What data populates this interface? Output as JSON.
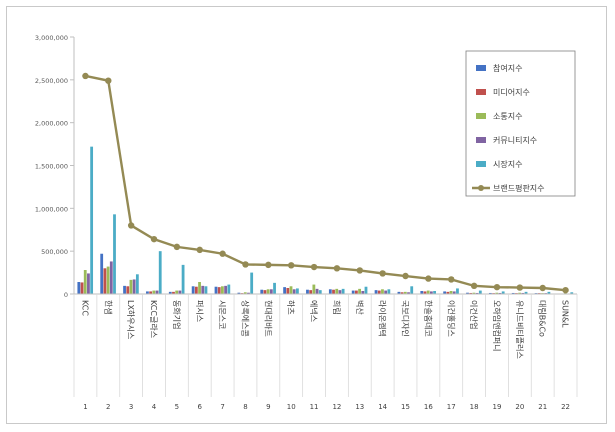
{
  "chart_data": {
    "type": "bar",
    "ylim": [
      0,
      3000000
    ],
    "yticks": [
      0,
      500000,
      1000000,
      1500000,
      2000000,
      2500000,
      3000000
    ],
    "ytick_labels": [
      "0",
      "500,000",
      "1,000,000",
      "1,500,000",
      "2,000,000",
      "2,500,000",
      "3,000,000"
    ],
    "categories": [
      "KCC",
      "한샘",
      "LX하우시스",
      "KCC글라스",
      "동화기업",
      "퍼시스",
      "시몬스코",
      "상록에스콤",
      "현대리바트",
      "하츠",
      "에넥스",
      "희림",
      "벽산",
      "라이온켐텍",
      "국보디자인",
      "한솔홈데코",
      "이건홀딩스",
      "이건산업",
      "오하임앤컴퍼니",
      "유니드비티플러스",
      "대림B&Co",
      "SUN&L"
    ],
    "ranks": [
      "1",
      "2",
      "3",
      "4",
      "5",
      "6",
      "7",
      "8",
      "9",
      "10",
      "11",
      "12",
      "13",
      "14",
      "15",
      "16",
      "17",
      "18",
      "19",
      "20",
      "21",
      "22"
    ],
    "series": [
      {
        "name": "참여지수",
        "color": "#4472c4",
        "kind": "bar",
        "values": [
          140000,
          470000,
          95000,
          30000,
          25000,
          90000,
          85000,
          15000,
          50000,
          80000,
          50000,
          55000,
          40000,
          45000,
          25000,
          35000,
          30000,
          15000,
          12000,
          12000,
          10000,
          5000
        ]
      },
      {
        "name": "미디어지수",
        "color": "#c0504d",
        "kind": "bar",
        "values": [
          135000,
          300000,
          90000,
          30000,
          25000,
          85000,
          80000,
          10000,
          45000,
          70000,
          45000,
          50000,
          40000,
          40000,
          20000,
          30000,
          25000,
          12000,
          10000,
          10000,
          10000,
          5000
        ]
      },
      {
        "name": "소통지수",
        "color": "#9bbb59",
        "kind": "bar",
        "values": [
          280000,
          320000,
          165000,
          40000,
          40000,
          140000,
          90000,
          20000,
          55000,
          90000,
          110000,
          60000,
          60000,
          55000,
          25000,
          40000,
          35000,
          15000,
          15000,
          15000,
          10000,
          10000
        ]
      },
      {
        "name": "커뮤니티지수",
        "color": "#8064a2",
        "kind": "bar",
        "values": [
          240000,
          380000,
          170000,
          40000,
          40000,
          95000,
          95000,
          15000,
          55000,
          55000,
          60000,
          45000,
          35000,
          40000,
          20000,
          30000,
          30000,
          12000,
          12000,
          12000,
          10000,
          5000
        ]
      },
      {
        "name": "시장지수",
        "color": "#4bacc6",
        "kind": "bar",
        "values": [
          1720000,
          930000,
          230000,
          500000,
          340000,
          90000,
          110000,
          250000,
          130000,
          65000,
          45000,
          60000,
          85000,
          55000,
          90000,
          35000,
          65000,
          40000,
          30000,
          25000,
          25000,
          20000
        ]
      },
      {
        "name": "브랜드평판지수",
        "color": "#948a54",
        "kind": "line",
        "values": [
          2545000,
          2490000,
          800000,
          640000,
          550000,
          515000,
          470000,
          345000,
          340000,
          335000,
          315000,
          300000,
          275000,
          240000,
          210000,
          180000,
          170000,
          95000,
          80000,
          75000,
          70000,
          45000
        ]
      }
    ],
    "legend_position": "right"
  }
}
